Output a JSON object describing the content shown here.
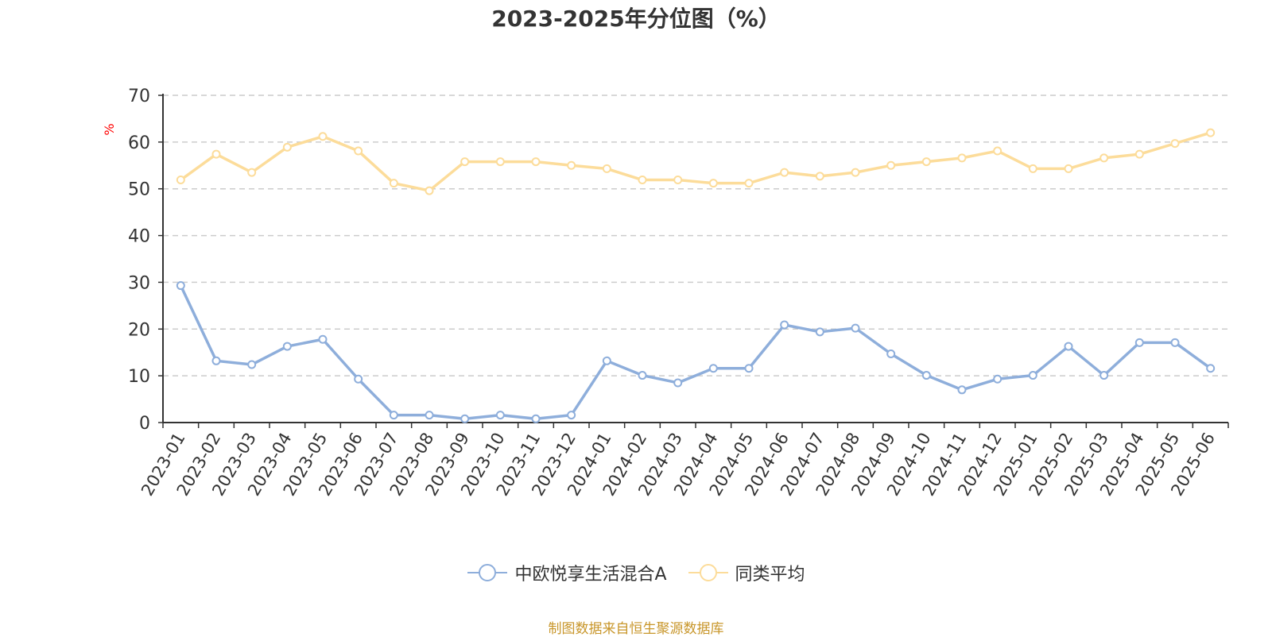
{
  "title": "2023-2025年分位图（%）",
  "source": "制图数据来自恒生聚源数据库",
  "chart_data": {
    "type": "line",
    "title": "2023-2025年分位图（%）",
    "ylabel": "%",
    "xlabel": "",
    "ylim": [
      0,
      70
    ],
    "yticks": [
      0,
      10,
      20,
      30,
      40,
      50,
      60,
      70
    ],
    "grid": true,
    "legend_position": "bottom-center",
    "categories": [
      "2023-01",
      "2023-02",
      "2023-03",
      "2023-04",
      "2023-05",
      "2023-06",
      "2023-07",
      "2023-08",
      "2023-09",
      "2023-10",
      "2023-11",
      "2023-12",
      "2024-01",
      "2024-02",
      "2024-03",
      "2024-04",
      "2024-05",
      "2024-06",
      "2024-07",
      "2024-08",
      "2024-09",
      "2024-10",
      "2024-11",
      "2024-12",
      "2025-01",
      "2025-02",
      "2025-03",
      "2025-04",
      "2025-05",
      "2025-06"
    ],
    "series": [
      {
        "name": "中欧悦享生活混合A",
        "color": "#8eaedb",
        "values": [
          29.3,
          13.2,
          12.4,
          16.3,
          17.8,
          9.3,
          1.6,
          1.6,
          0.8,
          1.6,
          0.8,
          1.6,
          13.2,
          10.1,
          8.5,
          11.6,
          11.6,
          20.9,
          19.4,
          20.2,
          14.7,
          10.1,
          7.0,
          9.3,
          10.1,
          16.3,
          10.1,
          17.1,
          17.1,
          11.6
        ]
      },
      {
        "name": "同类平均",
        "color": "#fcdc9a",
        "values": [
          51.9,
          57.4,
          53.5,
          58.9,
          61.2,
          58.1,
          51.2,
          49.6,
          55.8,
          55.8,
          55.8,
          55.0,
          54.3,
          51.9,
          51.9,
          51.2,
          51.2,
          53.5,
          52.7,
          53.5,
          55.0,
          55.8,
          56.6,
          58.1,
          54.3,
          54.3,
          56.6,
          57.4,
          59.7,
          62.0
        ]
      }
    ]
  }
}
